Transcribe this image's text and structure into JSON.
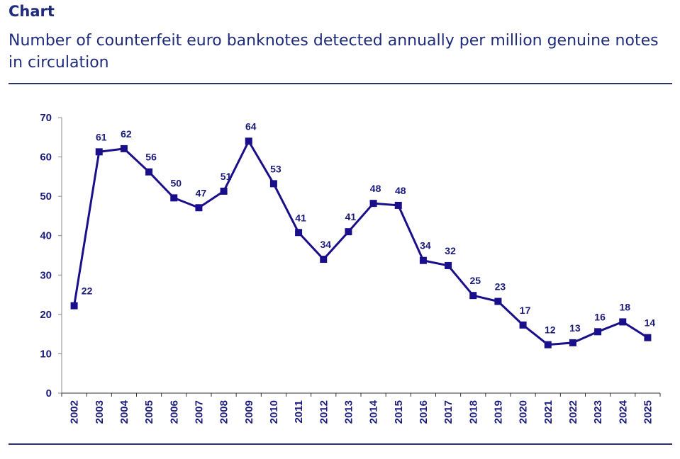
{
  "header": {
    "heading": "Chart",
    "subtitle": "Number of counterfeit euro banknotes detected annually per million genuine notes in circulation"
  },
  "colors": {
    "title": "#1f2b7b",
    "series": "#1a0f8a",
    "axis": "#888888",
    "rule": "#2a3366"
  },
  "chart_data": {
    "type": "line",
    "title": "Number of counterfeit euro banknotes detected annually per million genuine notes in circulation",
    "xlabel": "",
    "ylabel": "",
    "ylim": [
      0,
      70
    ],
    "yticks": [
      0,
      10,
      20,
      30,
      40,
      50,
      60,
      70
    ],
    "grid": false,
    "legend": "none",
    "marker": "square",
    "categories": [
      "2002",
      "2003",
      "2004",
      "2005",
      "2006",
      "2007",
      "2008",
      "2009",
      "2010",
      "2011",
      "2012",
      "2013",
      "2014",
      "2015",
      "2016",
      "2017",
      "2018",
      "2019",
      "2020",
      "2021",
      "2022",
      "2023",
      "2024",
      "2025"
    ],
    "series": [
      {
        "name": "Counterfeits per million genuine notes",
        "values": [
          22.2,
          61.3,
          62.1,
          56.2,
          49.6,
          47.1,
          51.3,
          64.0,
          53.2,
          40.8,
          34.0,
          41.0,
          48.2,
          47.7,
          33.7,
          32.4,
          24.8,
          23.3,
          17.3,
          12.3,
          12.8,
          15.6,
          18.1,
          14.1
        ],
        "labels": [
          "22",
          "61",
          "62",
          "56",
          "50",
          "47",
          "51",
          "64",
          "53",
          "41",
          "34",
          "41",
          "48",
          "48",
          "34",
          "32",
          "25",
          "23",
          "17",
          "12",
          "13",
          "16",
          "18",
          "14"
        ]
      }
    ]
  }
}
